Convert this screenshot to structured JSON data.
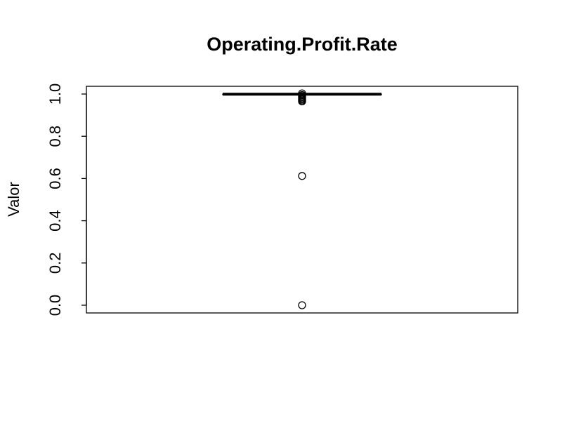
{
  "chart_data": {
    "type": "box",
    "title": "Operating.Profit.Rate",
    "xlabel": "",
    "ylabel": "Valor",
    "ylim": [
      0,
      1
    ],
    "y_ticks": [
      0.0,
      0.2,
      0.4,
      0.6,
      0.8,
      1.0
    ],
    "y_tick_labels": [
      "0.0",
      "0.2",
      "0.4",
      "0.6",
      "0.8",
      "1.0"
    ],
    "box": {
      "q1": 0.9985,
      "median": 0.999,
      "q3": 0.9993,
      "whisker_low": 0.997,
      "whisker_high": 1.0
    },
    "outliers": [
      0.0,
      0.612,
      0.965,
      0.97,
      0.975,
      0.98,
      0.985,
      0.99,
      0.995,
      1.003
    ],
    "grid": false
  }
}
